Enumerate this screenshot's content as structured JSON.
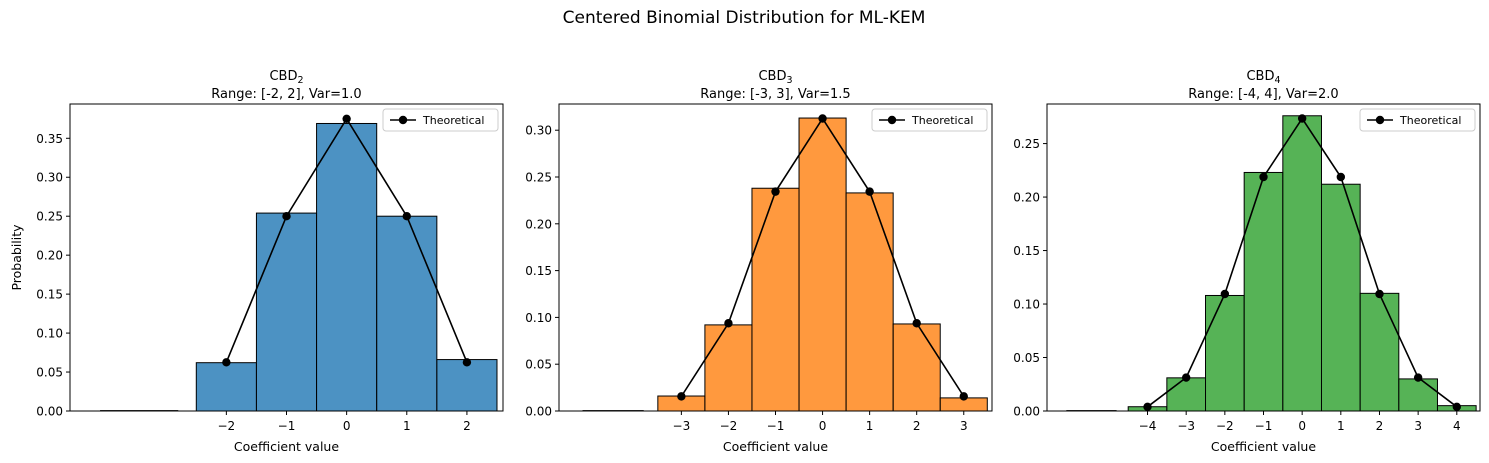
{
  "suptitle": "Centered Binomial Distribution for ML-KEM",
  "chart_data": [
    {
      "type": "bar",
      "name": "cbd2",
      "title_main": "CBD",
      "title_sub": "2",
      "title_line2": "Range: [-2, 2], Var=1.0",
      "xlabel": "Coefficient value",
      "ylabel": "Probability",
      "color": "#1f77b4",
      "categories": [
        -2,
        -1,
        0,
        1,
        2
      ],
      "values": [
        0.062,
        0.254,
        0.369,
        0.25,
        0.066
      ],
      "theoretical": [
        0.0625,
        0.25,
        0.375,
        0.25,
        0.0625
      ],
      "xlim": [
        -4.6,
        2.6
      ],
      "ylim": [
        0,
        0.394
      ],
      "xticks": [
        "−2",
        "−1",
        "0",
        "1",
        "2"
      ],
      "yticks": [
        "0.00",
        "0.05",
        "0.10",
        "0.15",
        "0.20",
        "0.25",
        "0.30",
        "0.35"
      ],
      "legend": "Theoretical",
      "legend_position": "top-right"
    },
    {
      "type": "bar",
      "name": "cbd3",
      "title_main": "CBD",
      "title_sub": "3",
      "title_line2": "Range: [-3, 3], Var=1.5",
      "xlabel": "Coefficient value",
      "ylabel": "",
      "color": "#ff7f0e",
      "categories": [
        -3,
        -2,
        -1,
        0,
        1,
        2,
        3
      ],
      "values": [
        0.016,
        0.092,
        0.238,
        0.313,
        0.233,
        0.093,
        0.014
      ],
      "theoretical": [
        0.015625,
        0.09375,
        0.234375,
        0.3125,
        0.234375,
        0.09375,
        0.015625
      ],
      "xlim": [
        -5.6,
        3.6
      ],
      "ylim": [
        0,
        0.328
      ],
      "xticks": [
        "−3",
        "−2",
        "−1",
        "0",
        "1",
        "2",
        "3"
      ],
      "yticks": [
        "0.00",
        "0.05",
        "0.10",
        "0.15",
        "0.20",
        "0.25",
        "0.30"
      ],
      "legend": "Theoretical",
      "legend_position": "top-right"
    },
    {
      "type": "bar",
      "name": "cbd4",
      "title_main": "CBD",
      "title_sub": "4",
      "title_line2": "Range: [-4, 4], Var=2.0",
      "xlabel": "Coefficient value",
      "ylabel": "",
      "color": "#2ca02c",
      "categories": [
        -4,
        -3,
        -2,
        -1,
        0,
        1,
        2,
        3,
        4
      ],
      "values": [
        0.004,
        0.031,
        0.108,
        0.223,
        0.276,
        0.212,
        0.11,
        0.03,
        0.005
      ],
      "theoretical": [
        0.00390625,
        0.03125,
        0.109375,
        0.21875,
        0.2734375,
        0.21875,
        0.109375,
        0.03125,
        0.00390625
      ],
      "xlim": [
        -6.6,
        4.6
      ],
      "ylim": [
        0,
        0.287
      ],
      "xticks": [
        "−4",
        "−3",
        "−2",
        "−1",
        "0",
        "1",
        "2",
        "3",
        "4"
      ],
      "yticks": [
        "0.00",
        "0.05",
        "0.10",
        "0.15",
        "0.20",
        "0.25"
      ],
      "legend": "Theoretical",
      "legend_position": "top-right"
    }
  ]
}
